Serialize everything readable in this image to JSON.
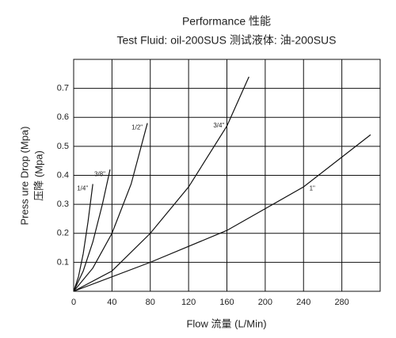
{
  "chart_data": {
    "type": "line",
    "title": "Performance 性能",
    "subtitle": "Test Fluid: oil-200SUS 测试液体:  油-200SUS",
    "xlabel": "Flow 流量 (L/Min)",
    "ylabel": [
      "Press ure Drop (Mpa)",
      "压降  (Mpa)"
    ],
    "xlim": [
      0,
      320
    ],
    "ylim": [
      0,
      0.8
    ],
    "xticks": [
      0,
      40,
      80,
      120,
      160,
      200,
      240,
      280
    ],
    "yticks": [
      0.1,
      0.2,
      0.3,
      0.4,
      0.5,
      0.6,
      0.7
    ],
    "grid": true,
    "series": [
      {
        "name": "1/4\"",
        "color": "#111111",
        "x": [
          0,
          5,
          10,
          15,
          20
        ],
        "values": [
          0,
          0.05,
          0.13,
          0.24,
          0.37
        ]
      },
      {
        "name": "3/8\"",
        "color": "#111111",
        "x": [
          0,
          10,
          20,
          30,
          38
        ],
        "values": [
          0,
          0.07,
          0.17,
          0.3,
          0.42
        ]
      },
      {
        "name": "1/2\"",
        "color": "#111111",
        "x": [
          0,
          20,
          40,
          60,
          77
        ],
        "values": [
          0,
          0.08,
          0.2,
          0.37,
          0.58
        ]
      },
      {
        "name": "3/4\"",
        "color": "#111111",
        "x": [
          0,
          40,
          80,
          120,
          160,
          183
        ],
        "values": [
          0,
          0.07,
          0.2,
          0.36,
          0.57,
          0.74
        ]
      },
      {
        "name": "1\"",
        "color": "#111111",
        "x": [
          0,
          80,
          160,
          240,
          310
        ],
        "values": [
          0,
          0.1,
          0.21,
          0.36,
          0.54
        ]
      }
    ]
  }
}
